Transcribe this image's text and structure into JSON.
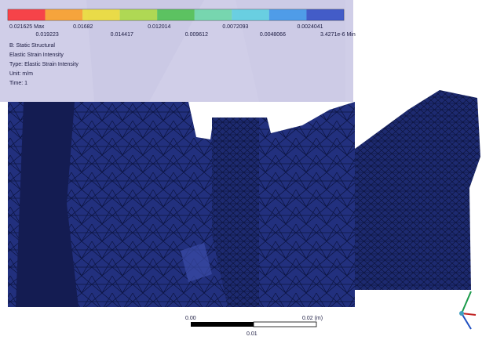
{
  "legend": {
    "labels": [
      "0.021625 Max",
      "0.019223",
      "0.01682",
      "0.014417",
      "0.012014",
      "0.009612",
      "0.0072093",
      "0.0048066",
      "0.0024041",
      "3.4271e-6 Min"
    ],
    "analysis": "B: Static Structural",
    "result": "Elastic Strain Intensity",
    "type": "Type: Elastic Strain Intensity",
    "unit": "Unit: m/m",
    "time": "Time: 1"
  },
  "scale_bar": {
    "start": "0.00",
    "end": "0.02 (m)",
    "mid": "0.01"
  }
}
